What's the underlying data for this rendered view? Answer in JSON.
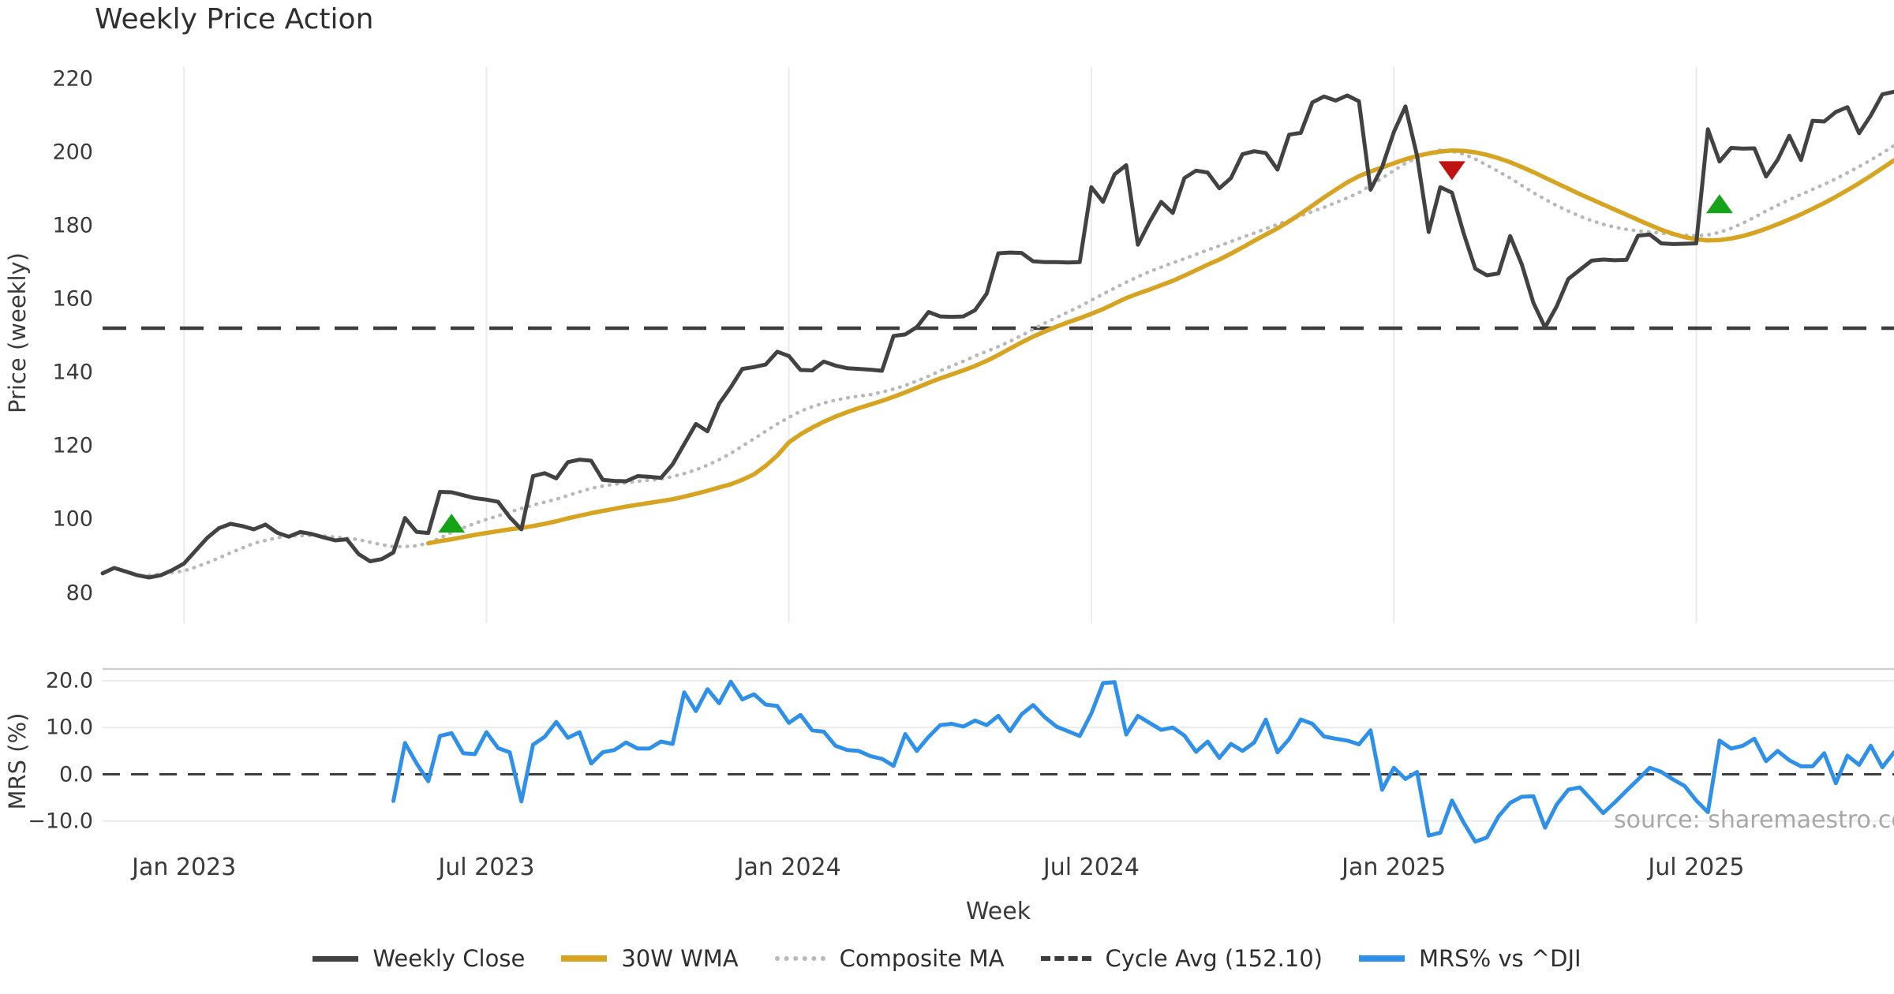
{
  "title": "Weekly Price Action",
  "source_note": "source: sharemaestro.com",
  "colors": {
    "close": "#424242",
    "wma": "#d7a422",
    "composite": "#b8b8b8",
    "cycle": "#3d3d3d",
    "mrs": "#2f90e8",
    "buy": "#17a317",
    "sell": "#c11212",
    "grid": "#ebebeb",
    "panel_border": "#cfcfcf"
  },
  "legend": [
    {
      "key": "close",
      "label": "Weekly Close"
    },
    {
      "key": "wma",
      "label": "30W WMA"
    },
    {
      "key": "composite",
      "label": "Composite MA"
    },
    {
      "key": "cycle",
      "label": "Cycle Avg (152.10)"
    },
    {
      "key": "mrs",
      "label": "MRS% vs ^DJI"
    }
  ],
  "chart_data": [
    {
      "type": "line",
      "panel": "price",
      "title": "Weekly Price Action",
      "xlabel": "Week",
      "ylabel": "Price (weekly)",
      "ylim": [
        80,
        220
      ],
      "yticks": [
        80,
        100,
        120,
        140,
        160,
        180,
        200,
        220
      ],
      "grid": "vertical-only",
      "cycle_avg": 152.1,
      "x_is_weeks_from": "mid-Nov 2022, one point per week",
      "xticks": [
        {
          "week": 7,
          "label": "Jan 2023"
        },
        {
          "week": 33,
          "label": "Jul 2023"
        },
        {
          "week": 59,
          "label": "Jan 2024"
        },
        {
          "week": 85,
          "label": "Jul 2024"
        },
        {
          "week": 111,
          "label": "Jan 2025"
        },
        {
          "week": 137,
          "label": "Jul 2025"
        }
      ],
      "series": [
        {
          "name": "Weekly Close",
          "start_week": 0,
          "values": [
            85.3,
            86.8,
            85.8,
            84.8,
            84.2,
            84.8,
            86.2,
            88.0,
            91.5,
            95.0,
            97.6,
            98.8,
            98.2,
            97.3,
            98.6,
            96.4,
            95.3,
            96.6,
            96.0,
            95.1,
            94.3,
            94.6,
            90.6,
            88.6,
            89.2,
            91.0,
            100.4,
            96.6,
            96.3,
            107.5,
            107.4,
            106.6,
            105.8,
            105.4,
            104.8,
            100.6,
            97.3,
            111.8,
            112.6,
            111.2,
            115.6,
            116.3,
            116.0,
            110.8,
            110.5,
            110.4,
            111.8,
            111.6,
            111.3,
            115.0,
            120.5,
            126.0,
            124.0,
            131.5,
            136.0,
            141.0,
            141.5,
            142.2,
            145.7,
            144.5,
            140.7,
            140.6,
            143.0,
            141.9,
            141.2,
            141.0,
            140.8,
            140.5,
            150.0,
            150.4,
            152.4,
            156.5,
            155.3,
            155.2,
            155.3,
            157.0,
            161.5,
            172.5,
            172.7,
            172.6,
            170.3,
            170.1,
            170.1,
            170.0,
            170.1,
            190.5,
            186.5,
            194.0,
            196.5,
            174.8,
            181.0,
            186.5,
            183.5,
            193.0,
            195.0,
            194.5,
            190.2,
            193.0,
            199.5,
            200.3,
            199.8,
            195.3,
            204.8,
            205.3,
            213.6,
            215.2,
            214.1,
            215.5,
            213.9,
            189.8,
            196.0,
            205.5,
            212.5,
            199.0,
            178.3,
            190.5,
            189.0,
            178.0,
            168.3,
            166.5,
            167.0,
            177.2,
            169.5,
            159.0,
            152.3,
            158.0,
            165.5,
            168.0,
            170.5,
            170.8,
            170.6,
            170.7,
            177.3,
            177.6,
            175.2,
            175.0,
            175.1,
            175.2,
            206.3,
            197.5,
            201.2,
            201.0,
            201.1,
            193.4,
            198.0,
            204.5,
            197.9,
            208.6,
            208.4,
            211.0,
            212.3,
            205.2,
            210.0,
            215.8,
            216.5
          ]
        },
        {
          "name": "30W WMA",
          "start_week": 28,
          "values": [
            93.5,
            94.1,
            94.6,
            95.2,
            95.8,
            96.3,
            96.8,
            97.3,
            97.7,
            98.2,
            98.8,
            99.5,
            100.3,
            101.0,
            101.7,
            102.3,
            102.9,
            103.5,
            104.0,
            104.5,
            105.0,
            105.5,
            106.2,
            107.0,
            107.8,
            108.7,
            109.6,
            110.8,
            112.3,
            114.6,
            117.4,
            121.0,
            123.2,
            125.0,
            126.6,
            128.0,
            129.2,
            130.3,
            131.3,
            132.3,
            133.4,
            134.6,
            135.9,
            137.2,
            138.4,
            139.5,
            140.6,
            141.8,
            143.2,
            144.8,
            146.5,
            148.2,
            149.8,
            151.2,
            152.5,
            153.7,
            154.8,
            156.0,
            157.3,
            158.8,
            160.3,
            161.5,
            162.6,
            163.8,
            165.0,
            166.4,
            167.9,
            169.4,
            170.8,
            172.4,
            174.1,
            175.9,
            177.6,
            179.3,
            181.2,
            183.3,
            185.5,
            187.7,
            189.8,
            191.8,
            193.5,
            194.8,
            195.9,
            197.0,
            198.1,
            199.0,
            199.7,
            200.2,
            200.5,
            200.4,
            200.0,
            199.3,
            198.4,
            197.3,
            196.0,
            194.6,
            193.1,
            191.6,
            190.1,
            188.6,
            187.2,
            185.8,
            184.4,
            183.0,
            181.6,
            180.2,
            178.9,
            177.8,
            176.9,
            176.3,
            176.0,
            176.1,
            176.5,
            177.2,
            178.1,
            179.2,
            180.4,
            181.7,
            183.1,
            184.6,
            186.2,
            187.9,
            189.7,
            191.6,
            193.6,
            195.7,
            197.8
          ]
        },
        {
          "name": "Composite MA",
          "start_week": 4,
          "values": [
            84.8,
            85.1,
            85.5,
            86.0,
            87.0,
            88.2,
            89.5,
            90.9,
            92.2,
            93.5,
            94.3,
            95.0,
            95.5,
            95.6,
            95.6,
            95.5,
            95.2,
            94.9,
            94.5,
            93.8,
            93.1,
            92.6,
            92.6,
            92.8,
            93.6,
            94.9,
            96.5,
            97.7,
            98.9,
            100.0,
            101.0,
            102.0,
            103.0,
            103.9,
            104.7,
            105.5,
            106.5,
            107.5,
            108.5,
            109.1,
            109.6,
            110.0,
            110.4,
            110.7,
            111.0,
            111.7,
            112.5,
            113.5,
            114.8,
            116.3,
            118.0,
            120.0,
            122.0,
            124.0,
            126.0,
            127.8,
            129.5,
            130.7,
            131.7,
            132.5,
            133.1,
            133.6,
            134.0,
            134.7,
            135.5,
            136.5,
            137.7,
            139.0,
            140.5,
            141.8,
            143.1,
            144.5,
            145.8,
            147.1,
            148.5,
            150.1,
            151.8,
            153.5,
            155.0,
            156.5,
            158.0,
            159.7,
            161.4,
            163.0,
            164.6,
            166.1,
            167.5,
            168.7,
            169.9,
            171.0,
            172.2,
            173.4,
            174.5,
            175.7,
            176.9,
            178.0,
            179.2,
            180.4,
            181.5,
            182.7,
            183.9,
            185.0,
            186.3,
            187.6,
            189.0,
            191.0,
            193.0,
            195.0,
            197.0,
            198.5,
            199.8,
            200.6,
            200.3,
            199.5,
            198.2,
            196.5,
            194.8,
            193.0,
            191.0,
            189.0,
            187.2,
            185.5,
            184.0,
            182.6,
            181.4,
            180.4,
            179.6,
            179.0,
            178.6,
            178.3,
            178.0,
            177.7,
            177.4,
            177.3,
            177.5,
            178.2,
            179.3,
            180.7,
            182.3,
            184.0,
            185.6,
            187.1,
            188.5,
            189.9,
            191.3,
            192.8,
            194.4,
            196.1,
            197.9,
            199.8,
            201.8
          ]
        }
      ],
      "signals": [
        {
          "week": 30,
          "price": 99.0,
          "type": "buy"
        },
        {
          "week": 116,
          "price": 195.0,
          "type": "sell"
        },
        {
          "week": 139,
          "price": 186.0,
          "type": "buy"
        }
      ]
    },
    {
      "type": "line",
      "panel": "mrs",
      "ylabel": "MRS (%)",
      "ylim": [
        -15,
        22.5
      ],
      "yticks": [
        -10.0,
        0.0,
        10.0,
        20.0
      ],
      "ytick_labels": [
        "−10.0",
        "0.0",
        "10.0",
        "20.0"
      ],
      "zero_line": 0.0,
      "grid": "horizontal-only",
      "series": [
        {
          "name": "MRS% vs ^DJI",
          "start_week": 25,
          "values": [
            -5.7,
            6.7,
            2.3,
            -1.5,
            8.2,
            8.8,
            4.5,
            4.3,
            9.0,
            5.6,
            4.7,
            -5.8,
            6.3,
            8.0,
            11.2,
            7.8,
            9.0,
            2.3,
            4.7,
            5.2,
            6.8,
            5.5,
            5.5,
            7.0,
            6.5,
            17.5,
            13.5,
            18.2,
            15.2,
            19.8,
            16.0,
            17.1,
            14.9,
            14.6,
            11.0,
            12.7,
            9.4,
            9.1,
            6.1,
            5.2,
            5.0,
            3.9,
            3.3,
            1.8,
            8.6,
            5.0,
            8.0,
            10.5,
            10.8,
            10.2,
            11.5,
            10.5,
            12.5,
            9.2,
            12.8,
            14.8,
            12.2,
            10.2,
            9.2,
            8.2,
            13.0,
            19.5,
            19.7,
            8.5,
            12.5,
            11.0,
            9.5,
            10.0,
            8.3,
            4.8,
            7.0,
            3.5,
            6.5,
            5.0,
            6.8,
            11.7,
            4.7,
            7.5,
            11.7,
            10.8,
            8.1,
            7.6,
            7.2,
            6.4,
            9.4,
            -3.3,
            1.4,
            -1.0,
            0.5,
            -13.1,
            -12.5,
            -5.6,
            -10.3,
            -14.4,
            -13.5,
            -9.0,
            -6.1,
            -4.8,
            -4.7,
            -11.4,
            -6.5,
            -3.3,
            -2.8,
            -5.5,
            -8.3,
            -6.0,
            -3.5,
            -1.1,
            1.4,
            0.5,
            -1.1,
            -2.5,
            -5.6,
            -8.1,
            7.2,
            5.5,
            6.1,
            7.6,
            2.8,
            5.0,
            3.0,
            1.7,
            1.7,
            4.5,
            -1.9,
            4.0,
            2.0,
            6.1,
            1.5,
            4.7
          ]
        }
      ]
    }
  ],
  "labels": {
    "price_ylabel": "Price (weekly)",
    "mrs_ylabel": "MRS (%)",
    "xlabel": "Week"
  }
}
